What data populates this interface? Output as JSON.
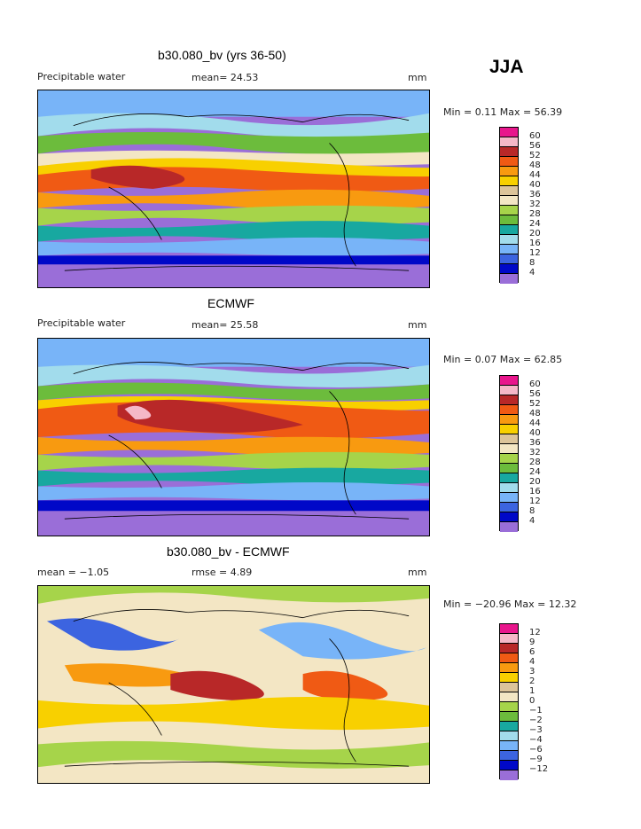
{
  "season": "JJA",
  "panels": [
    {
      "title": "b30.080_bv (yrs 36-50)",
      "left_label": "Precipitable water",
      "center_label": "mean=  24.53",
      "units": "mm",
      "minmax": "Min =   0.11 Max =  56.39",
      "colorbar": {
        "labels": [
          "60",
          "56",
          "52",
          "48",
          "44",
          "40",
          "36",
          "32",
          "28",
          "24",
          "20",
          "16",
          "12",
          "8",
          "4"
        ],
        "colors": [
          "#e8168c",
          "#f5b8c8",
          "#b82828",
          "#f05a14",
          "#f89a10",
          "#f8d000",
          "#dcc49a",
          "#f3e6c4",
          "#a6d44a",
          "#6cbc3c",
          "#18a8a0",
          "#a2dcec",
          "#78b4f8",
          "#3c64e0",
          "#0008c8",
          "#9a6ed8"
        ]
      }
    },
    {
      "title": "ECMWF",
      "left_label": "Precipitable water",
      "center_label": "mean=  25.58",
      "units": "mm",
      "minmax": "Min =   0.07 Max =  62.85",
      "colorbar": {
        "labels": [
          "60",
          "56",
          "52",
          "48",
          "44",
          "40",
          "36",
          "32",
          "28",
          "24",
          "20",
          "16",
          "12",
          "8",
          "4"
        ],
        "colors": [
          "#e8168c",
          "#f5b8c8",
          "#b82828",
          "#f05a14",
          "#f89a10",
          "#f8d000",
          "#dcc49a",
          "#f3e6c4",
          "#a6d44a",
          "#6cbc3c",
          "#18a8a0",
          "#a2dcec",
          "#78b4f8",
          "#3c64e0",
          "#0008c8",
          "#9a6ed8"
        ]
      }
    },
    {
      "title": "b30.080_bv - ECMWF",
      "left_label": "mean =  −1.05",
      "center_label": "rmse =   4.89",
      "units": "mm",
      "minmax": "Min = −20.96 Max =  12.32",
      "colorbar": {
        "labels": [
          "12",
          "9",
          "6",
          "4",
          "3",
          "2",
          "1",
          "0",
          "−1",
          "−2",
          "−3",
          "−4",
          "−6",
          "−9",
          "−12"
        ],
        "colors": [
          "#e8168c",
          "#f5b8c8",
          "#b82828",
          "#f05a14",
          "#f89a10",
          "#f8d000",
          "#dcc49a",
          "#f3e6c4",
          "#a6d44a",
          "#6cbc3c",
          "#18a8a0",
          "#a2dcec",
          "#78b4f8",
          "#3c64e0",
          "#0008c8",
          "#9a6ed8"
        ]
      }
    }
  ]
}
